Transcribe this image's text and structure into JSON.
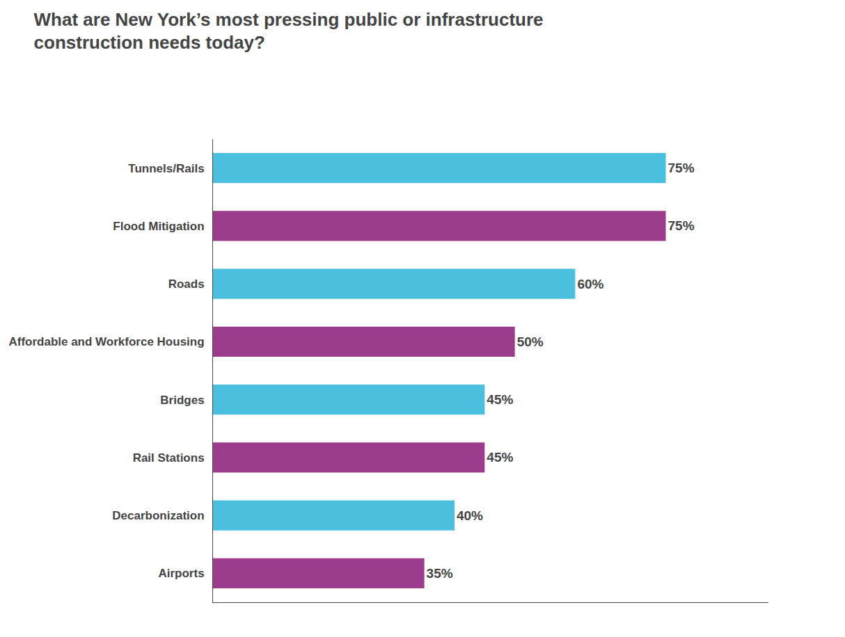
{
  "chart_data": {
    "type": "bar",
    "orientation": "horizontal",
    "title": "What are New York’s most pressing public or infrastructure\nconstruction needs today?",
    "categories": [
      "Tunnels/Rails",
      "Flood Mitigation",
      "Roads",
      "Affordable and Workforce Housing",
      "Bridges",
      "Rail Stations",
      "Decarbonization",
      "Airports"
    ],
    "values": [
      75,
      75,
      60,
      50,
      45,
      45,
      40,
      35
    ],
    "value_labels": [
      "75%",
      "75%",
      "60%",
      "50%",
      "45%",
      "45%",
      "40%",
      "35%"
    ],
    "colors": [
      "#4bbfde",
      "#9b3d8c",
      "#4bbfde",
      "#9b3d8c",
      "#4bbfde",
      "#9b3d8c",
      "#4bbfde",
      "#9b3d8c"
    ],
    "xlim": [
      0,
      92
    ],
    "data_labels": true,
    "tick_labels": "y",
    "grid": false
  }
}
